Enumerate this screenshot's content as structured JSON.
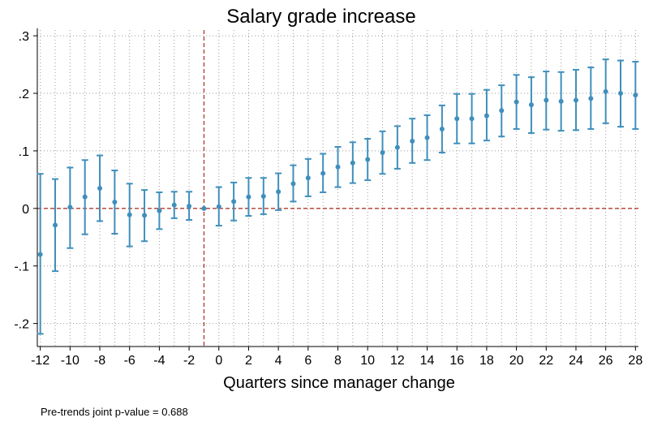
{
  "chart_data": {
    "type": "scatter",
    "title": "Salary grade increase",
    "xlabel": "Quarters since manager change",
    "ylabel": "",
    "xlim": [
      -12.2,
      28.2
    ],
    "ylim": [
      -0.24,
      0.31
    ],
    "xticks": [
      -12,
      -10,
      -8,
      -6,
      -4,
      -2,
      0,
      2,
      4,
      6,
      8,
      10,
      12,
      14,
      16,
      18,
      20,
      22,
      24,
      26,
      28
    ],
    "xtick_labels": [
      "-12",
      "-10",
      "-8",
      "-6",
      "-4",
      "-2",
      "0",
      "2",
      "4",
      "6",
      "8",
      "10",
      "12",
      "14",
      "16",
      "18",
      "20",
      "22",
      "24",
      "26",
      "28"
    ],
    "yticks": [
      -0.2,
      -0.1,
      0,
      0.1,
      0.2,
      0.3
    ],
    "ytick_labels": [
      "-.2",
      "-.1",
      "0",
      ".1",
      ".2",
      ".3"
    ],
    "grid": true,
    "reference_lines": {
      "x": -1,
      "y": 0,
      "color": "#b03a2e"
    },
    "colors": {
      "series": "#3f8fbc",
      "reference": "#b03a2e",
      "grid": "#9a9a9a"
    },
    "series": [
      {
        "x": [
          -12,
          -11,
          -10,
          -9,
          -8,
          -7,
          -6,
          -5,
          -4,
          -3,
          -2,
          -1,
          0,
          1,
          2,
          3,
          4,
          5,
          6,
          7,
          8,
          9,
          10,
          11,
          12,
          13,
          14,
          15,
          16,
          17,
          18,
          19,
          20,
          21,
          22,
          23,
          24,
          25,
          26,
          27,
          28
        ],
        "y": [
          -0.08,
          -0.029,
          0.002,
          0.02,
          0.035,
          0.011,
          -0.011,
          -0.012,
          -0.004,
          0.006,
          0.004,
          0.0,
          0.003,
          0.012,
          0.02,
          0.021,
          0.029,
          0.043,
          0.053,
          0.061,
          0.072,
          0.079,
          0.085,
          0.097,
          0.106,
          0.117,
          0.123,
          0.138,
          0.156,
          0.156,
          0.161,
          0.17,
          0.185,
          0.18,
          0.188,
          0.186,
          0.188,
          0.191,
          0.203,
          0.2,
          0.197
        ],
        "ci_low": [
          -0.218,
          -0.109,
          -0.069,
          -0.045,
          -0.022,
          -0.044,
          -0.066,
          -0.057,
          -0.036,
          -0.017,
          -0.02,
          0.0,
          -0.03,
          -0.021,
          -0.013,
          -0.01,
          -0.003,
          0.012,
          0.021,
          0.028,
          0.037,
          0.044,
          0.049,
          0.06,
          0.069,
          0.079,
          0.084,
          0.097,
          0.113,
          0.113,
          0.118,
          0.125,
          0.138,
          0.131,
          0.137,
          0.135,
          0.136,
          0.138,
          0.148,
          0.142,
          0.138
        ],
        "ci_high": [
          0.06,
          0.051,
          0.071,
          0.084,
          0.092,
          0.066,
          0.043,
          0.032,
          0.028,
          0.029,
          0.029,
          0.0,
          0.037,
          0.045,
          0.053,
          0.053,
          0.061,
          0.075,
          0.086,
          0.095,
          0.107,
          0.115,
          0.121,
          0.134,
          0.143,
          0.156,
          0.162,
          0.179,
          0.199,
          0.199,
          0.206,
          0.214,
          0.232,
          0.228,
          0.238,
          0.237,
          0.241,
          0.245,
          0.259,
          0.257,
          0.255
        ]
      }
    ]
  },
  "footnote": "Pre-trends joint p-value = 0.688"
}
